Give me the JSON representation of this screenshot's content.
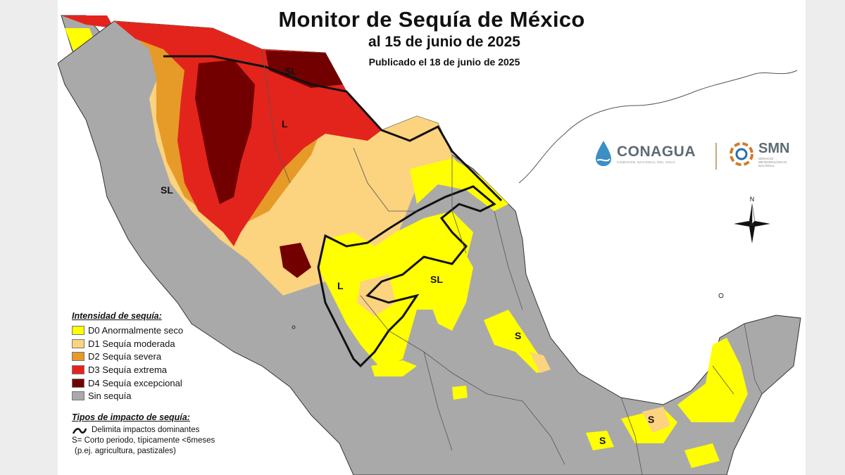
{
  "header": {
    "title": "Monitor de Sequía de México",
    "date_line": "al 15 de junio de 2025",
    "published_line": "Publicado el 18 de junio de 2025"
  },
  "logos": {
    "conagua": {
      "name": "CONAGUA",
      "subtitle": "COMISIÓN NACIONAL DEL AGUA",
      "icon": "water-drop-icon"
    },
    "smn": {
      "name": "SMN",
      "subtitle": "SERVICIO METEOROLÓGICO NACIONAL",
      "icon": "cloud-swirl-icon"
    }
  },
  "compass": {
    "north_label": "N"
  },
  "legend": {
    "intensity_title": "Intensidad de sequía:",
    "items": [
      {
        "label": "D0 Anormalmente seco",
        "color": "#ffff00"
      },
      {
        "label": "D1 Sequía moderada",
        "color": "#fcd37f"
      },
      {
        "label": "D2 Sequía severa",
        "color": "#e69a28"
      },
      {
        "label": "D3 Sequía extrema",
        "color": "#e3241c"
      },
      {
        "label": "D4 Sequía excepcional",
        "color": "#730000"
      },
      {
        "label": "Sin sequía",
        "color": "#a9a9a9"
      }
    ],
    "impact_title": "Tipos de impacto de sequía:",
    "impact_lines": [
      "Delimita impactos dominantes",
      "S= Corto periodo, típicamente <6meses",
      "(p.ej. agricultura, pastizales)"
    ]
  },
  "map_labels": {
    "sl_north": "SL",
    "l_chihuahua": "L",
    "sl_baja": "SL",
    "l_durango": "L",
    "sl_san_luis": "SL",
    "s_veracruz": "S",
    "s_tabasco": "S",
    "s_oaxaca": "S"
  }
}
